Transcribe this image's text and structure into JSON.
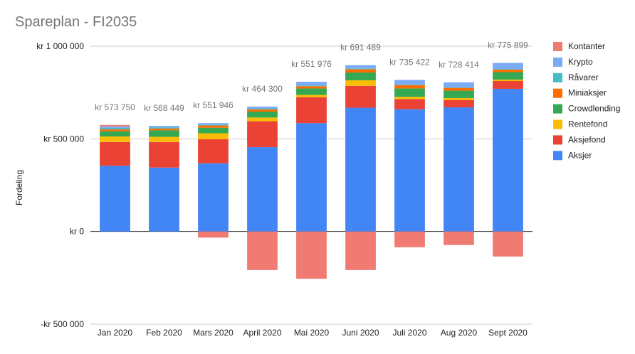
{
  "chart_data": {
    "type": "bar",
    "stacked": true,
    "title": "Spareplan - FI2035",
    "xlabel": "",
    "ylabel": "Fordeling",
    "ylim": [
      -500000,
      1000000
    ],
    "yticks": [
      1000000,
      500000,
      0,
      -500000
    ],
    "ytick_labels": [
      "kr 1 000 000",
      "kr 500 000",
      "kr   0",
      "-kr 500 000"
    ],
    "grid": true,
    "legend_position": "right",
    "categories": [
      "Jan 2020",
      "Feb 2020",
      "Mars 2020",
      "April 2020",
      "Mai 2020",
      "Juni 2020",
      "Juli 2020",
      "Aug 2020",
      "Sept 2020"
    ],
    "totals": [
      "kr 573 750",
      "kr 568 449",
      "kr 551 946",
      "kr 464 300",
      "kr 551 976",
      "kr 691 489",
      "kr 735 422",
      "kr 728 414",
      "kr 775 899"
    ],
    "total_values": [
      573750,
      568449,
      551946,
      464300,
      551976,
      691489,
      735422,
      728414,
      775899
    ],
    "series": [
      {
        "name": "Aksjer",
        "color": "#4285f4",
        "values": [
          355000,
          345000,
          368000,
          455000,
          585000,
          668000,
          660000,
          670000,
          770000
        ]
      },
      {
        "name": "Aksjefond",
        "color": "#ea4335",
        "values": [
          128000,
          138000,
          130000,
          140000,
          140000,
          118000,
          55000,
          40000,
          42000
        ]
      },
      {
        "name": "Rentefond",
        "color": "#fbbc04",
        "values": [
          30000,
          28000,
          32000,
          20000,
          12000,
          30000,
          12000,
          10000,
          8000
        ]
      },
      {
        "name": "Crowdlending",
        "color": "#34a853",
        "values": [
          28000,
          35000,
          30000,
          32000,
          35000,
          42000,
          45000,
          40000,
          40000
        ]
      },
      {
        "name": "Miniaksjer",
        "color": "#ff6d01",
        "values": [
          10000,
          10000,
          12000,
          12000,
          12000,
          18000,
          18000,
          15000,
          14000
        ]
      },
      {
        "name": "Råvarer",
        "color": "#46bdc6",
        "values": [
          8000,
          6000,
          5000,
          5000,
          4000,
          4000,
          3000,
          3000,
          3000
        ]
      },
      {
        "name": "Krypto",
        "color": "#7baaf7",
        "values": [
          8000,
          8000,
          8000,
          10000,
          20000,
          18000,
          25000,
          27000,
          33000
        ]
      },
      {
        "name": "Kontanter",
        "color": "#f07b72",
        "values": [
          8000,
          0,
          -33000,
          -208000,
          -255000,
          -208000,
          -85000,
          -73000,
          -135000
        ]
      }
    ],
    "legend_order": [
      "Kontanter",
      "Krypto",
      "Råvarer",
      "Miniaksjer",
      "Crowdlending",
      "Rentefond",
      "Aksjefond",
      "Aksjer"
    ]
  }
}
